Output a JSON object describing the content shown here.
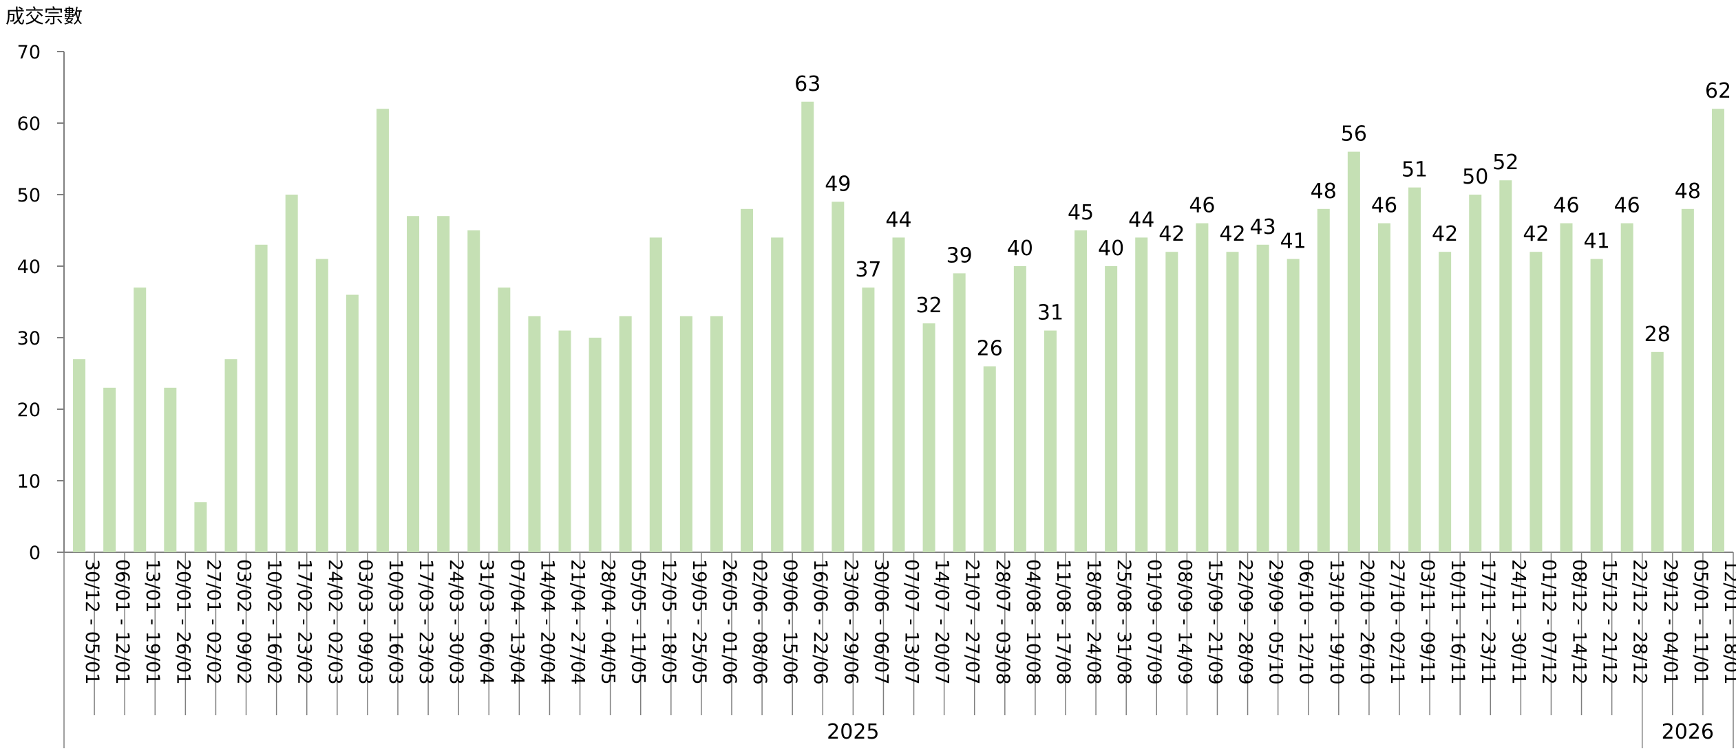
{
  "chart_data": {
    "type": "bar",
    "ylabel": "成交宗數",
    "ylim": [
      0,
      70
    ],
    "yticks": [
      0,
      10,
      20,
      30,
      40,
      50,
      60,
      70
    ],
    "bar_color": "#c5e0b4",
    "categories": [
      "30/12 - 05/01",
      "06/01 - 12/01",
      "13/01 - 19/01",
      "20/01 - 26/01",
      "27/01 - 02/02",
      "03/02 - 09/02",
      "10/02 - 16/02",
      "17/02 - 23/02",
      "24/02 - 02/03",
      "03/03 - 09/03",
      "10/03 - 16/03",
      "17/03 - 23/03",
      "24/03 - 30/03",
      "31/03 - 06/04",
      "07/04 - 13/04",
      "14/04 - 20/04",
      "21/04 - 27/04",
      "28/04 - 04/05",
      "05/05 - 11/05",
      "12/05 - 18/05",
      "19/05 - 25/05",
      "26/05 - 01/06",
      "02/06 - 08/06",
      "09/06 - 15/06",
      "16/06 - 22/06",
      "23/06 - 29/06",
      "30/06 - 06/07",
      "07/07 - 13/07",
      "14/07 - 20/07",
      "21/07 - 27/07",
      "28/07 - 03/08",
      "04/08 - 10/08",
      "11/08 - 17/08",
      "18/08 - 24/08",
      "25/08 - 31/08",
      "01/09 - 07/09",
      "08/09 - 14/09",
      "15/09 - 21/09",
      "22/09 - 28/09",
      "29/09 - 05/10",
      "06/10 - 12/10",
      "13/10 - 19/10",
      "20/10 - 26/10",
      "27/10 - 02/11",
      "03/11 - 09/11",
      "10/11 - 16/11",
      "17/11 - 23/11",
      "24/11 - 30/11",
      "01/12 - 07/12",
      "08/12 - 14/12",
      "15/12 - 21/12",
      "22/12 - 28/12",
      "29/12 - 04/01",
      "05/01 - 11/01",
      "12/01 - 18/01"
    ],
    "values": [
      27,
      23,
      37,
      23,
      7,
      27,
      43,
      50,
      41,
      36,
      62,
      47,
      47,
      45,
      37,
      33,
      31,
      30,
      33,
      44,
      33,
      33,
      48,
      44,
      63,
      49,
      37,
      44,
      32,
      39,
      26,
      40,
      31,
      45,
      40,
      44,
      42,
      46,
      42,
      43,
      41,
      48,
      56,
      46,
      51,
      42,
      50,
      52,
      42,
      46,
      41,
      46,
      28,
      48,
      62
    ],
    "data_labels_from_index": 24,
    "year_groups": [
      {
        "label": "2025",
        "start": 0,
        "end": 51
      },
      {
        "label": "2026",
        "start": 52,
        "end": 54
      }
    ]
  }
}
